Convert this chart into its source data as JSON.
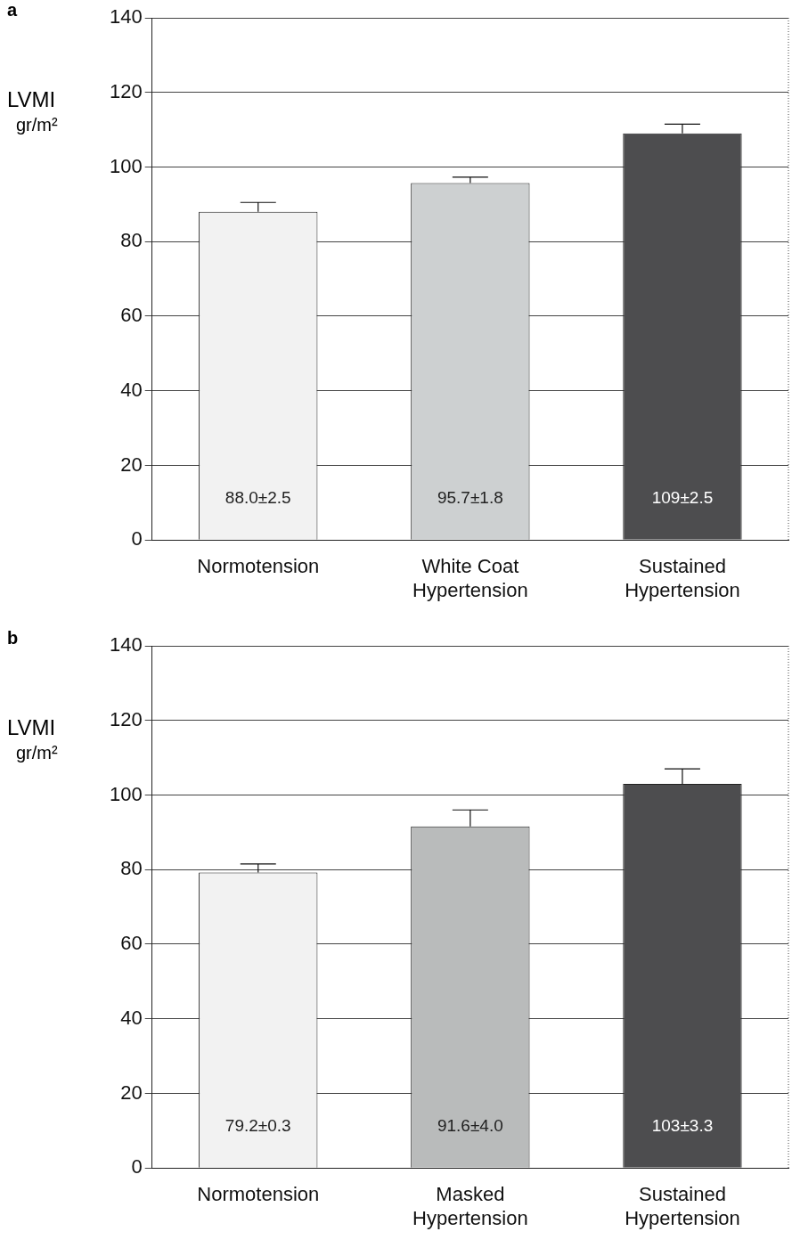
{
  "chart_data": [
    {
      "type": "bar",
      "title": "a",
      "ylabel": "LVMI\ngr/m²",
      "categories": [
        "Normotension",
        "White Coat Hypertension",
        "Sustained Hypertension"
      ],
      "values": [
        88.0,
        95.7,
        109
      ],
      "errors": [
        2.5,
        1.6,
        2.5
      ],
      "colors": [
        "#f2f2f2",
        "#cdd0d1",
        "#4d4d4f"
      ],
      "value_labels": [
        "88.0±2.5",
        "95.7±1.8",
        "109±2.5"
      ],
      "ylim": [
        0,
        140
      ],
      "yticks": [
        0,
        20,
        40,
        60,
        80,
        100,
        120,
        140
      ],
      "grid": "y",
      "legend": false
    },
    {
      "type": "bar",
      "title": "b",
      "ylabel": "LVMI\ngr/m²",
      "categories": [
        "Normotension",
        "Masked Hypertension",
        "Sustained Hypertension"
      ],
      "values": [
        79.2,
        91.6,
        103
      ],
      "errors": [
        2.3,
        4.4,
        4.0
      ],
      "colors": [
        "#f2f2f2",
        "#b9bbbb",
        "#4d4d4f"
      ],
      "value_labels": [
        "79.2±0.3",
        "91.6±4.0",
        "103±3.3"
      ],
      "ylim": [
        0,
        140
      ],
      "yticks": [
        0,
        20,
        40,
        60,
        80,
        100,
        120,
        140
      ],
      "grid": "y",
      "legend": false
    }
  ]
}
